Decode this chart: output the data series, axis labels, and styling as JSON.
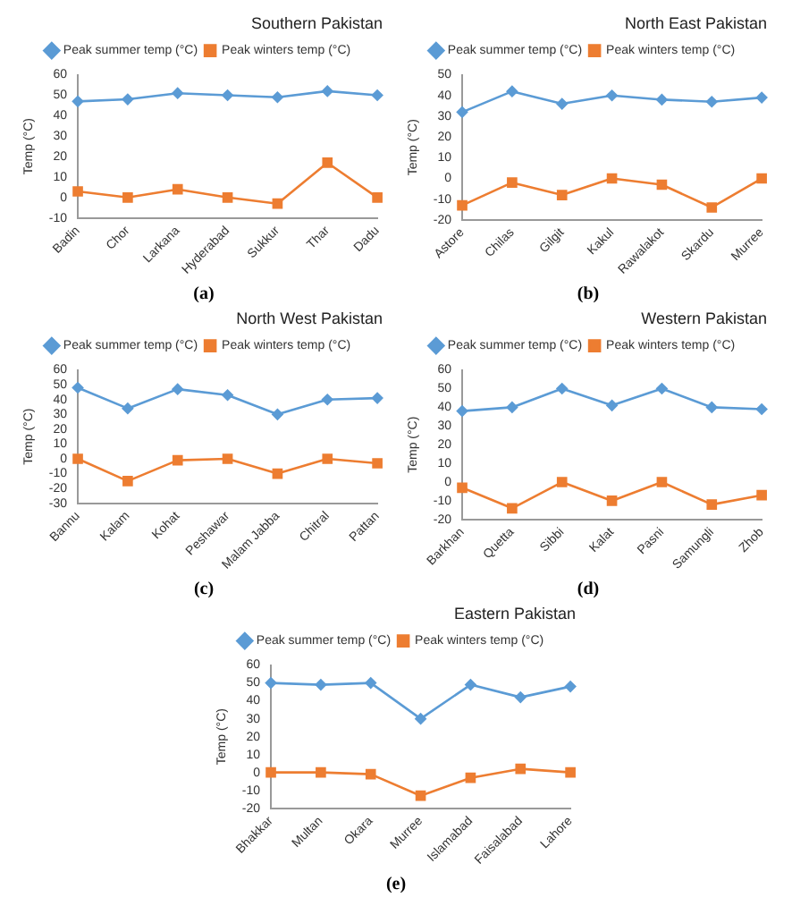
{
  "chart_data": [
    {
      "type": "line",
      "title": "Southern Pakistan",
      "ylabel": "Temp (°C)",
      "categories": [
        "Badin",
        "Chor",
        "Larkana",
        "Hyderabad",
        "Sukkur",
        "Thar",
        "Dadu"
      ],
      "series": [
        {
          "name": "Peak summer temp (°C)",
          "color": "#5b9bd5",
          "marker": "diamond",
          "values": [
            47,
            48,
            51,
            50,
            49,
            52,
            50
          ]
        },
        {
          "name": "Peak winters temp (°C)",
          "color": "#ed7d31",
          "marker": "square",
          "values": [
            3,
            0,
            4,
            0,
            -3,
            17,
            0
          ]
        }
      ],
      "ylim": [
        -10,
        60
      ],
      "yticks": [
        -10,
        0,
        10,
        20,
        30,
        40,
        50,
        60
      ],
      "grid": false,
      "legend": "top",
      "annotations": [
        "(a)"
      ]
    },
    {
      "type": "line",
      "title": "North East Pakistan",
      "ylabel": "Temp (°C)",
      "categories": [
        "Astore",
        "Chilas",
        "Gilgit",
        "Kakul",
        "Rawalakot",
        "Skardu",
        "Murree"
      ],
      "series": [
        {
          "name": "Peak summer temp (°C)",
          "color": "#5b9bd5",
          "marker": "diamond",
          "values": [
            32,
            42,
            36,
            40,
            38,
            37,
            39
          ]
        },
        {
          "name": "Peak winters temp (°C)",
          "color": "#ed7d31",
          "marker": "square",
          "values": [
            -13,
            -2,
            -8,
            0,
            -3,
            -14,
            0
          ]
        }
      ],
      "ylim": [
        -20,
        50
      ],
      "yticks": [
        -20,
        -10,
        0,
        10,
        20,
        30,
        40,
        50
      ],
      "grid": false,
      "legend": "top",
      "annotations": [
        "(b)"
      ]
    },
    {
      "type": "line",
      "title": "North West Pakistan",
      "ylabel": "Temp (°C)",
      "categories": [
        "Bannu",
        "Kalam",
        "Kohat",
        "Peshawar",
        "Malam Jabba",
        "Chitral",
        "Pattan"
      ],
      "series": [
        {
          "name": "Peak summer temp (°C)",
          "color": "#5b9bd5",
          "marker": "diamond",
          "values": [
            48,
            34,
            47,
            43,
            30,
            40,
            41
          ]
        },
        {
          "name": "Peak winters temp (°C)",
          "color": "#ed7d31",
          "marker": "square",
          "values": [
            0,
            -15,
            -1,
            0,
            -10,
            0,
            -3
          ]
        }
      ],
      "ylim": [
        -30,
        60
      ],
      "yticks": [
        -30,
        -20,
        -10,
        0,
        10,
        20,
        30,
        40,
        50,
        60
      ],
      "grid": false,
      "legend": "top",
      "annotations": [
        "(c)"
      ]
    },
    {
      "type": "line",
      "title": "Western Pakistan",
      "ylabel": "Temp (°C)",
      "categories": [
        "Barkhan",
        "Quetta",
        "Sibbi",
        "Kalat",
        "Pasni",
        "Samungli",
        "Zhob"
      ],
      "series": [
        {
          "name": "Peak summer temp (°C)",
          "color": "#5b9bd5",
          "marker": "diamond",
          "values": [
            38,
            40,
            50,
            41,
            50,
            40,
            39
          ]
        },
        {
          "name": "Peak winters temp (°C)",
          "color": "#ed7d31",
          "marker": "square",
          "values": [
            -3,
            -14,
            0,
            -10,
            0,
            -12,
            -7
          ]
        }
      ],
      "ylim": [
        -20,
        60
      ],
      "yticks": [
        -20,
        -10,
        0,
        10,
        20,
        30,
        40,
        50,
        60
      ],
      "grid": false,
      "legend": "top",
      "annotations": [
        "(d)"
      ]
    },
    {
      "type": "line",
      "title": "Eastern Pakistan",
      "ylabel": "Temp (°C)",
      "categories": [
        "Bhakkar",
        "Multan",
        "Okara",
        "Murree",
        "Islamabad",
        "Faisalabad",
        "Lahore"
      ],
      "series": [
        {
          "name": "Peak summer temp (°C)",
          "color": "#5b9bd5",
          "marker": "diamond",
          "values": [
            50,
            49,
            50,
            30,
            49,
            42,
            48
          ]
        },
        {
          "name": "Peak winters temp (°C)",
          "color": "#ed7d31",
          "marker": "square",
          "values": [
            0,
            0,
            -1,
            -13,
            -3,
            2,
            0
          ]
        }
      ],
      "ylim": [
        -20,
        60
      ],
      "yticks": [
        -20,
        -10,
        0,
        10,
        20,
        30,
        40,
        50,
        60
      ],
      "grid": false,
      "legend": "top",
      "annotations": [
        "(e)"
      ]
    }
  ]
}
